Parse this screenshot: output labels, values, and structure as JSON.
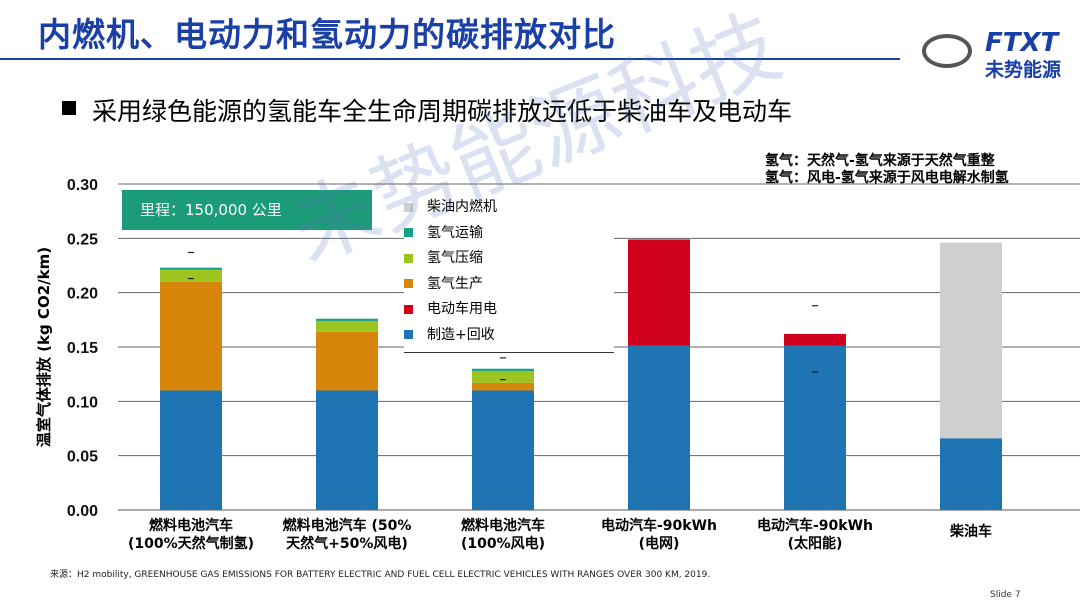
{
  "header": {
    "title": "内燃机、电动力和氢动力的碳排放对比",
    "logo_en": "FTXT",
    "logo_cn": "未势能源"
  },
  "bullet": "采用绿色能源的氢能车全生命周期碳排放远低于柴油车及电动车",
  "notes": [
    "氢气：天然气-氢气来源于天然气重整",
    "氢气：风电-氢气来源于风电电解水制氢"
  ],
  "mileage_label": "里程：150,000 公里",
  "watermark": "未势能源科技",
  "source": "来源：H2 mobility, GREENHOUSE GAS EMISSIONS FOR BATTERY ELECTRIC AND FUEL CELL ELECTRIC VEHICLES WITH RANGES OVER 300 KM, 2019.",
  "slide_label": "Slide 7",
  "colors": {
    "diesel_ice": "#cfcfcf",
    "h2_transport": "#17a088",
    "h2_compression": "#9ec41f",
    "h2_production": "#d8860b",
    "ev_electricity": "#d0021b",
    "manufacturing": "#1f74b4",
    "brand": "#1a3fa6"
  },
  "chart_data": {
    "type": "bar",
    "stacked": true,
    "ylabel": "温室气体排放 (kg CO2/km)",
    "ylim": [
      0,
      0.3
    ],
    "yticks": [
      "0.00",
      "0.05",
      "0.10",
      "0.15",
      "0.20",
      "0.25",
      "0.30"
    ],
    "grid": true,
    "legend_position": "top-center",
    "categories": [
      [
        "燃料电池汽车",
        "(100%天然气制氢)"
      ],
      [
        "燃料电池汽车 (50%",
        "天然气+50%风电)"
      ],
      [
        "燃料电池汽车",
        "(100%风电)"
      ],
      [
        "电动汽车-90kWh",
        "(电网)"
      ],
      [
        "电动汽车-90kWh",
        "(太阳能)"
      ],
      [
        "柴油车",
        ""
      ]
    ],
    "series": [
      {
        "name": "制造+回收",
        "color_key": "manufacturing",
        "values": [
          0.11,
          0.11,
          0.11,
          0.151,
          0.151,
          0.066
        ]
      },
      {
        "name": "电动车用电",
        "color_key": "ev_electricity",
        "values": [
          0,
          0,
          0,
          0.098,
          0.011,
          0
        ]
      },
      {
        "name": "氢气生产",
        "color_key": "h2_production",
        "values": [
          0.1,
          0.054,
          0.007,
          0,
          0,
          0
        ]
      },
      {
        "name": "氢气压缩",
        "color_key": "h2_compression",
        "values": [
          0.011,
          0.01,
          0.011,
          0,
          0,
          0
        ]
      },
      {
        "name": "氢气运输",
        "color_key": "h2_transport",
        "values": [
          0.002,
          0.002,
          0.002,
          0,
          0,
          0
        ]
      },
      {
        "name": "柴油内燃机",
        "color_key": "diesel_ice",
        "values": [
          0,
          0,
          0,
          0,
          0,
          0.18
        ]
      }
    ],
    "error_marks": [
      {
        "category": 0,
        "values": [
          0.237,
          0.213
        ]
      },
      {
        "category": 2,
        "values": [
          0.14,
          0.12
        ]
      },
      {
        "category": 4,
        "values": [
          0.188,
          0.127
        ]
      }
    ]
  }
}
